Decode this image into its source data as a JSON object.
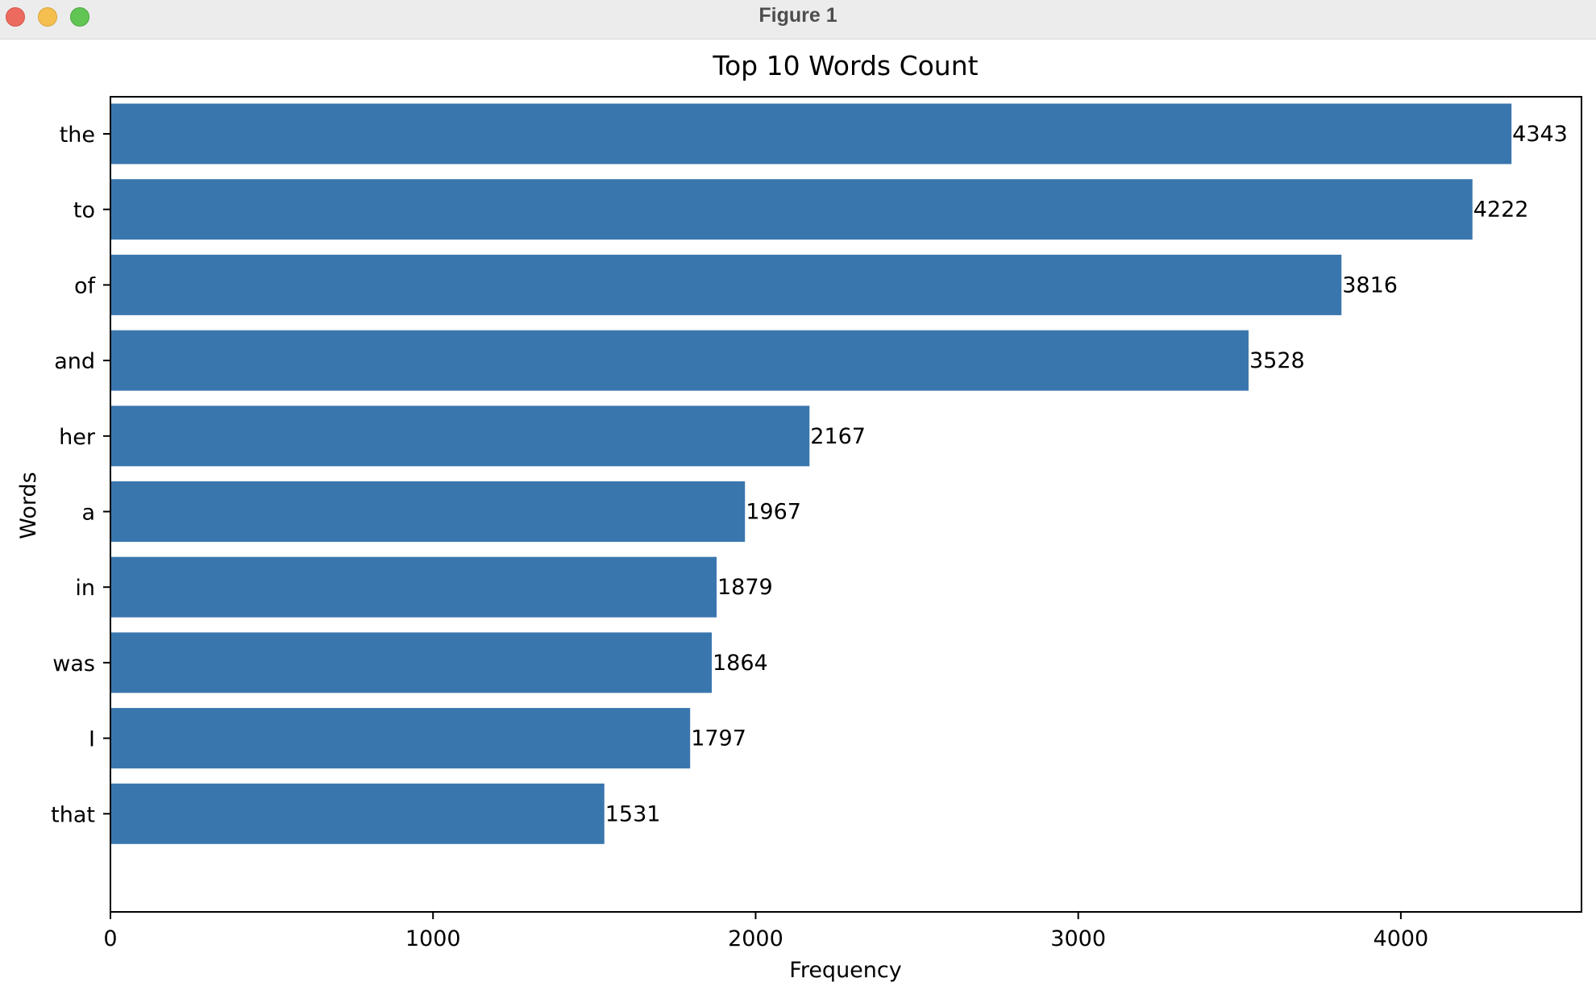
{
  "window": {
    "title": "Figure 1"
  },
  "colors": {
    "bar": "#3a76ae",
    "axis": "#000000",
    "titlebar": "#ececec"
  },
  "chart_data": {
    "type": "bar",
    "orientation": "horizontal",
    "title": "Top 10 Words Count",
    "xlabel": "Frequency",
    "ylabel": "Words",
    "categories": [
      "the",
      "to",
      "of",
      "and",
      "her",
      "a",
      "in",
      "was",
      "I",
      "that"
    ],
    "values": [
      4343,
      4222,
      3816,
      3528,
      2167,
      1967,
      1879,
      1864,
      1797,
      1531
    ],
    "value_labels": [
      "4343",
      "4222",
      "3816",
      "3528",
      "2167",
      "1967",
      "1879",
      "1864",
      "1797",
      "1531"
    ],
    "xlim": [
      0,
      4560
    ],
    "xticks": [
      0,
      1000,
      2000,
      3000,
      4000
    ],
    "xtick_labels": [
      "0",
      "1000",
      "2000",
      "3000",
      "4000"
    ],
    "grid": false,
    "legend": "none"
  }
}
